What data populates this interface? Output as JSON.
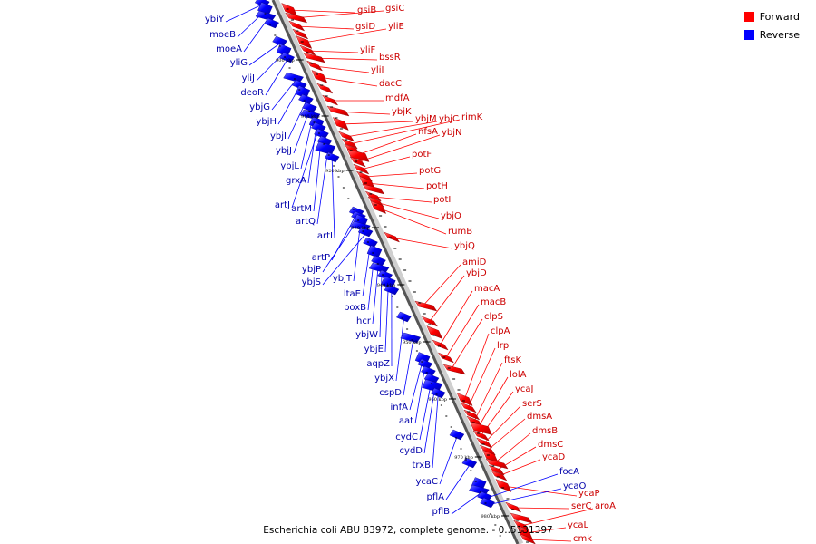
{
  "legend": {
    "forward_label": "Forward",
    "reverse_label": "Reverse",
    "forward_color": "#ff0000",
    "reverse_color": "#0000ff"
  },
  "caption": "Escherichia coli ABU 83972, complete genome. - 0..5131397",
  "axis_ticks": [
    "900 kbp",
    "910 kbp",
    "920 kbp",
    "930 kbp",
    "940 kbp",
    "950 kbp",
    "960 kbp",
    "970 kbp",
    "980 kbp"
  ],
  "forward_genes": [
    "gsiB",
    "gsiC",
    "gsiD",
    "yliE",
    "yliF",
    "bssR",
    "yliI",
    "dacC",
    "mdfA",
    "ybjK",
    "ybjM",
    "ybjC",
    "rimK",
    "nfsA",
    "ybjN",
    "potF",
    "potG",
    "potH",
    "potI",
    "ybjO",
    "rumB",
    "ybjQ",
    "amiD",
    "ybjD",
    "macA",
    "macB",
    "clpS",
    "clpA",
    "lrp",
    "ftsK",
    "lolA",
    "ycaJ",
    "serS",
    "dmsA",
    "dmsB",
    "dmsC",
    "ycaD",
    "ycaP",
    "serC",
    "aroA",
    "ycaL",
    "cmk"
  ],
  "reverse_genes": [
    "ybiY",
    "moeB",
    "moeA",
    "yliG",
    "yliJ",
    "deoR",
    "ybjG",
    "ybjH",
    "ybjI",
    "ybjJ",
    "ybjL",
    "grxA",
    "artJ",
    "artM",
    "artQ",
    "artI",
    "artP",
    "ybjP",
    "ybjT",
    "ybjS",
    "ltaE",
    "poxB",
    "hcr",
    "ybjW",
    "ybjE",
    "aqpZ",
    "ybjX",
    "cspD",
    "infA",
    "aat",
    "cydC",
    "cydD",
    "trxB",
    "ycaC",
    "pflA",
    "pflB",
    "focA",
    "ycaO"
  ]
}
